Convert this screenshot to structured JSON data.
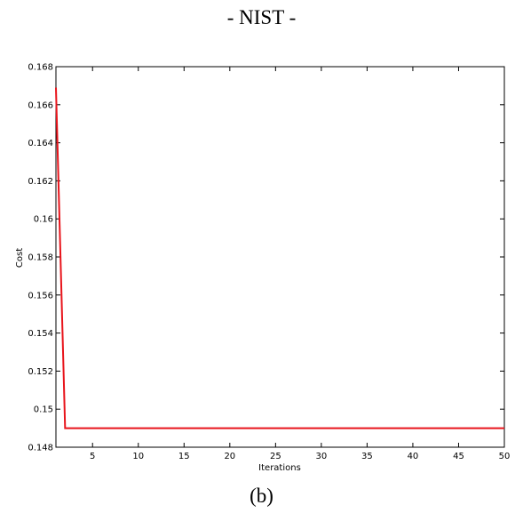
{
  "header": {
    "title": "- NIST -"
  },
  "caption": "(b)",
  "chart_data": {
    "type": "line",
    "xlabel": "Iterations",
    "ylabel": "Cost",
    "xlim": [
      1,
      50
    ],
    "ylim": [
      0.148,
      0.168
    ],
    "xticks": [
      5,
      10,
      15,
      20,
      25,
      30,
      35,
      40,
      45,
      50
    ],
    "yticks": [
      0.148,
      0.15,
      0.152,
      0.154,
      0.156,
      0.158,
      0.16,
      0.162,
      0.164,
      0.166,
      0.168
    ],
    "ytick_labels": [
      "0.148",
      "0.15",
      "0.152",
      "0.154",
      "0.156",
      "0.158",
      "0.16",
      "0.162",
      "0.164",
      "0.166",
      "0.168"
    ],
    "grid": false,
    "line_color": "#e8141b",
    "series": [
      {
        "x": [
          1,
          2,
          3,
          4,
          5,
          6,
          7,
          8,
          9,
          10,
          11,
          12,
          13,
          14,
          15,
          16,
          17,
          18,
          19,
          20,
          21,
          22,
          23,
          24,
          25,
          26,
          27,
          28,
          29,
          30,
          31,
          32,
          33,
          34,
          35,
          36,
          37,
          38,
          39,
          40,
          41,
          42,
          43,
          44,
          45,
          46,
          47,
          48,
          49,
          50
        ],
        "y": [
          0.1669,
          0.149,
          0.149,
          0.149,
          0.149,
          0.149,
          0.149,
          0.149,
          0.149,
          0.149,
          0.149,
          0.149,
          0.149,
          0.149,
          0.149,
          0.149,
          0.149,
          0.149,
          0.149,
          0.149,
          0.149,
          0.149,
          0.149,
          0.149,
          0.149,
          0.149,
          0.149,
          0.149,
          0.149,
          0.149,
          0.149,
          0.149,
          0.149,
          0.149,
          0.149,
          0.149,
          0.149,
          0.149,
          0.149,
          0.149,
          0.149,
          0.149,
          0.149,
          0.149,
          0.149,
          0.149,
          0.149,
          0.149,
          0.149,
          0.149
        ]
      }
    ]
  }
}
